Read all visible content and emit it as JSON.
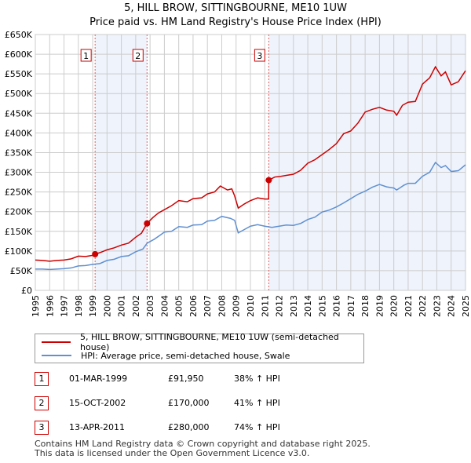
{
  "chart_data": {
    "type": "line",
    "title": "5, HILL BROW, SITTINGBOURNE, ME10 1UW",
    "subtitle": "Price paid vs. HM Land Registry's House Price Index (HPI)",
    "xlim": [
      1995,
      2025
    ],
    "ylim": [
      0,
      650000
    ],
    "x_ticks": [
      "1995",
      "1996",
      "1997",
      "1998",
      "1999",
      "2000",
      "2001",
      "2002",
      "2003",
      "2004",
      "2005",
      "2006",
      "2007",
      "2008",
      "2009",
      "2010",
      "2011",
      "2012",
      "2013",
      "2014",
      "2015",
      "2016",
      "2017",
      "2018",
      "2019",
      "2020",
      "2021",
      "2022",
      "2023",
      "2024",
      "2025"
    ],
    "y_ticks": [
      {
        "v": 0,
        "l": "£0"
      },
      {
        "v": 50000,
        "l": "£50K"
      },
      {
        "v": 100000,
        "l": "£100K"
      },
      {
        "v": 150000,
        "l": "£150K"
      },
      {
        "v": 200000,
        "l": "£200K"
      },
      {
        "v": 250000,
        "l": "£250K"
      },
      {
        "v": 300000,
        "l": "£300K"
      },
      {
        "v": 350000,
        "l": "£350K"
      },
      {
        "v": 400000,
        "l": "£400K"
      },
      {
        "v": 450000,
        "l": "£450K"
      },
      {
        "v": 500000,
        "l": "£500K"
      },
      {
        "v": 550000,
        "l": "£550K"
      },
      {
        "v": 600000,
        "l": "£600K"
      },
      {
        "v": 650000,
        "l": "£650K"
      }
    ],
    "grid": true,
    "series": [
      {
        "name": "5, HILL BROW, SITTINGBOURNE, ME10 1UW (semi-detached house)",
        "color": "#cc0000",
        "points": [
          [
            1995,
            77000
          ],
          [
            1995.5,
            76000
          ],
          [
            1996,
            74000
          ],
          [
            1996.5,
            76000
          ],
          [
            1997,
            77000
          ],
          [
            1997.5,
            80000
          ],
          [
            1998,
            87000
          ],
          [
            1998.5,
            86000
          ],
          [
            1999,
            89000
          ],
          [
            1999.17,
            91950
          ],
          [
            1999.6,
            97000
          ],
          [
            2000,
            103000
          ],
          [
            2000.5,
            108000
          ],
          [
            2001,
            115000
          ],
          [
            2001.5,
            120000
          ],
          [
            2002,
            135000
          ],
          [
            2002.4,
            145000
          ],
          [
            2002.79,
            170000
          ],
          [
            2003.2,
            185000
          ],
          [
            2003.6,
            197000
          ],
          [
            2004,
            205000
          ],
          [
            2004.5,
            215000
          ],
          [
            2005,
            228000
          ],
          [
            2005.6,
            225000
          ],
          [
            2006,
            233000
          ],
          [
            2006.6,
            235000
          ],
          [
            2007,
            245000
          ],
          [
            2007.5,
            250000
          ],
          [
            2007.9,
            265000
          ],
          [
            2008.4,
            255000
          ],
          [
            2008.7,
            258000
          ],
          [
            2008.9,
            240000
          ],
          [
            2009.15,
            209000
          ],
          [
            2009.6,
            220000
          ],
          [
            2010,
            228000
          ],
          [
            2010.5,
            235000
          ],
          [
            2011,
            232000
          ],
          [
            2011.27,
            232000
          ],
          [
            2011.28,
            280000
          ],
          [
            2011.7,
            288000
          ],
          [
            2012,
            289000
          ],
          [
            2012.5,
            292000
          ],
          [
            2013,
            295000
          ],
          [
            2013.5,
            305000
          ],
          [
            2014,
            323000
          ],
          [
            2014.5,
            332000
          ],
          [
            2015,
            345000
          ],
          [
            2015.5,
            358000
          ],
          [
            2016,
            373000
          ],
          [
            2016.5,
            398000
          ],
          [
            2017,
            405000
          ],
          [
            2017.5,
            425000
          ],
          [
            2018,
            453000
          ],
          [
            2018.5,
            460000
          ],
          [
            2019,
            465000
          ],
          [
            2019.5,
            458000
          ],
          [
            2020,
            455000
          ],
          [
            2020.2,
            445000
          ],
          [
            2020.6,
            470000
          ],
          [
            2021,
            478000
          ],
          [
            2021.5,
            480000
          ],
          [
            2022,
            524000
          ],
          [
            2022.5,
            540000
          ],
          [
            2022.9,
            568000
          ],
          [
            2023.3,
            545000
          ],
          [
            2023.6,
            555000
          ],
          [
            2024,
            522000
          ],
          [
            2024.5,
            530000
          ],
          [
            2025,
            558000
          ]
        ]
      },
      {
        "name": "HPI: Average price, semi-detached house, Swale",
        "color": "#6090d0",
        "points": [
          [
            1995,
            54000
          ],
          [
            1995.5,
            54000
          ],
          [
            1996,
            53000
          ],
          [
            1996.5,
            54000
          ],
          [
            1997,
            55000
          ],
          [
            1997.5,
            57000
          ],
          [
            1998,
            62000
          ],
          [
            1998.5,
            63000
          ],
          [
            1999,
            66000
          ],
          [
            1999.5,
            68000
          ],
          [
            2000,
            76000
          ],
          [
            2000.5,
            79000
          ],
          [
            2001,
            86000
          ],
          [
            2001.5,
            88000
          ],
          [
            2002,
            98000
          ],
          [
            2002.5,
            105000
          ],
          [
            2002.8,
            120000
          ],
          [
            2003.3,
            130000
          ],
          [
            2003.7,
            140000
          ],
          [
            2004,
            148000
          ],
          [
            2004.5,
            150000
          ],
          [
            2005,
            162000
          ],
          [
            2005.6,
            160000
          ],
          [
            2006,
            166000
          ],
          [
            2006.6,
            167000
          ],
          [
            2007,
            176000
          ],
          [
            2007.5,
            178000
          ],
          [
            2008,
            188000
          ],
          [
            2008.6,
            183000
          ],
          [
            2008.9,
            178000
          ],
          [
            2009.15,
            146000
          ],
          [
            2009.6,
            155000
          ],
          [
            2010,
            163000
          ],
          [
            2010.5,
            167000
          ],
          [
            2011,
            163000
          ],
          [
            2011.5,
            160000
          ],
          [
            2012,
            163000
          ],
          [
            2012.5,
            166000
          ],
          [
            2013,
            165000
          ],
          [
            2013.5,
            170000
          ],
          [
            2014,
            180000
          ],
          [
            2014.5,
            186000
          ],
          [
            2015,
            199000
          ],
          [
            2015.5,
            204000
          ],
          [
            2016,
            212000
          ],
          [
            2016.5,
            222000
          ],
          [
            2017,
            233000
          ],
          [
            2017.5,
            244000
          ],
          [
            2018,
            252000
          ],
          [
            2018.5,
            262000
          ],
          [
            2019,
            269000
          ],
          [
            2019.5,
            263000
          ],
          [
            2020,
            260000
          ],
          [
            2020.2,
            255000
          ],
          [
            2020.7,
            267000
          ],
          [
            2021,
            272000
          ],
          [
            2021.5,
            272000
          ],
          [
            2022,
            290000
          ],
          [
            2022.5,
            300000
          ],
          [
            2022.9,
            325000
          ],
          [
            2023.3,
            312000
          ],
          [
            2023.6,
            317000
          ],
          [
            2024,
            302000
          ],
          [
            2024.5,
            304000
          ],
          [
            2025,
            319000
          ]
        ]
      }
    ],
    "sales": [
      {
        "label": "1",
        "x": 1999.17,
        "value": 91950
      },
      {
        "label": "2",
        "x": 2002.79,
        "value": 170000
      },
      {
        "label": "3",
        "x": 2011.28,
        "value": 280000
      }
    ],
    "shaded": [
      [
        1999.17,
        2002.79
      ],
      [
        2011.28,
        2025
      ]
    ],
    "legend_placement": "bottom"
  },
  "table": [
    {
      "num": "1",
      "date": "01-MAR-1999",
      "price": "£91,950",
      "hpi": "38% ↑ HPI"
    },
    {
      "num": "2",
      "date": "15-OCT-2002",
      "price": "£170,000",
      "hpi": "41% ↑ HPI"
    },
    {
      "num": "3",
      "date": "13-APR-2011",
      "price": "£280,000",
      "hpi": "74% ↑ HPI"
    }
  ],
  "footer": {
    "line1": "Contains HM Land Registry data © Crown copyright and database right 2025.",
    "line2": "This data is licensed under the Open Government Licence v3.0."
  }
}
